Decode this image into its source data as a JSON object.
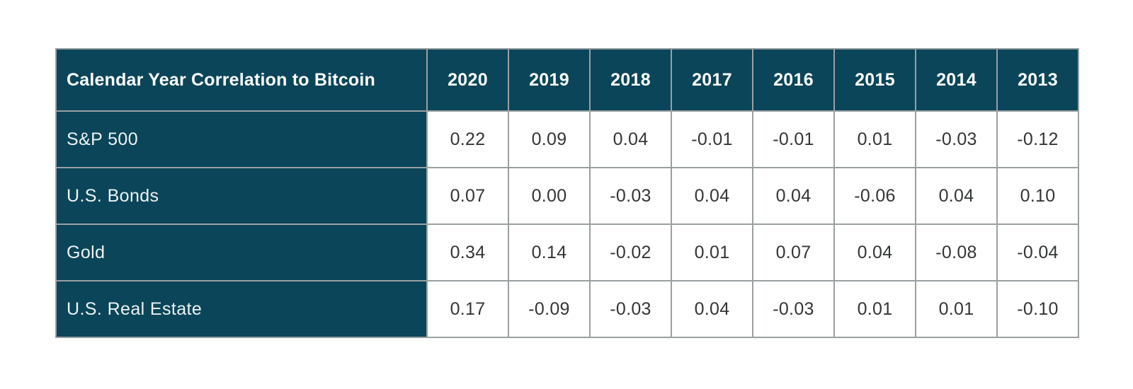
{
  "colors": {
    "header_bg": "#0b4559",
    "grid_border": "#9aa0a2",
    "header_text": "#ffffff",
    "label_text": "#eef3f4",
    "value_text": "#333536",
    "canvas_bg": "#ffffff"
  },
  "chart_data": {
    "type": "table",
    "title": "Calendar Year Correlation to Bitcoin",
    "columns": [
      "2020",
      "2019",
      "2018",
      "2017",
      "2016",
      "2015",
      "2014",
      "2013"
    ],
    "rows": [
      {
        "label": "S&P 500",
        "values": [
          "0.22",
          "0.09",
          "0.04",
          "-0.01",
          "-0.01",
          "0.01",
          "-0.03",
          "-0.12"
        ]
      },
      {
        "label": "U.S. Bonds",
        "values": [
          "0.07",
          "0.00",
          "-0.03",
          "0.04",
          "0.04",
          "-0.06",
          "0.04",
          "0.10"
        ]
      },
      {
        "label": "Gold",
        "values": [
          "0.34",
          "0.14",
          "-0.02",
          "0.01",
          "0.07",
          "0.04",
          "-0.08",
          "-0.04"
        ]
      },
      {
        "label": "U.S. Real Estate",
        "values": [
          "0.17",
          "-0.09",
          "-0.03",
          "0.04",
          "-0.03",
          "0.01",
          "0.01",
          "-0.10"
        ]
      }
    ]
  }
}
